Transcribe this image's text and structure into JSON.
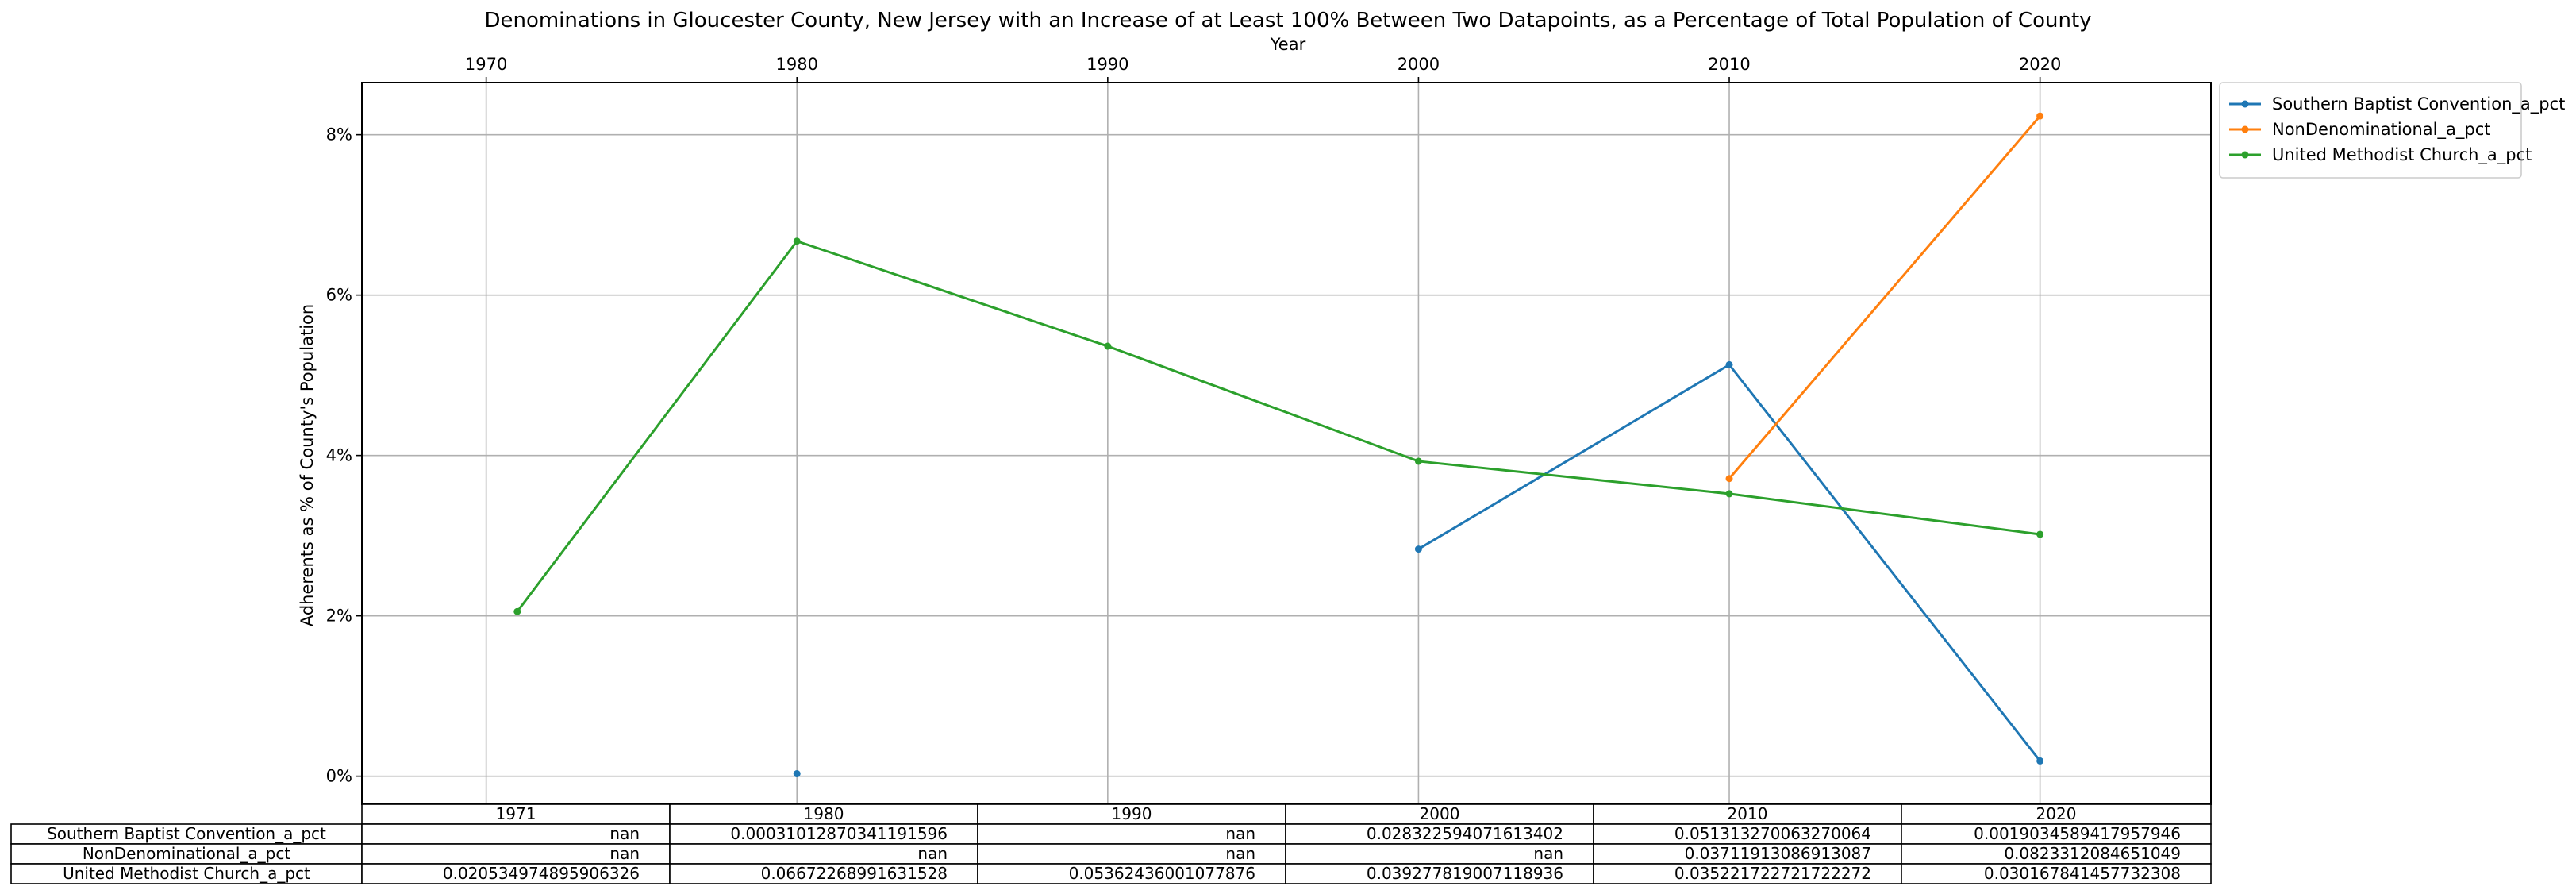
{
  "chart_data": {
    "type": "line",
    "title": "Denominations in Gloucester County, New Jersey with an Increase of at Least 100% Between Two Datapoints, as a Percentage of Total Population of County",
    "xlabel": "Year",
    "ylabel": "Adherents as % of County's Population",
    "x_axis_position": "top",
    "xlim": [
      1966,
      2025.5
    ],
    "ylim": [
      -0.0035,
      0.0865
    ],
    "x_ticks": [
      1970,
      1980,
      1990,
      2000,
      2010,
      2020
    ],
    "x_tick_labels": [
      "1970",
      "1980",
      "1990",
      "2000",
      "2010",
      "2020"
    ],
    "y_ticks": [
      0,
      0.02,
      0.04,
      0.06,
      0.08
    ],
    "y_tick_labels": [
      "0%",
      "2%",
      "4%",
      "6%",
      "8%"
    ],
    "grid": true,
    "legend_position": "outside upper right",
    "x": [
      1971,
      1980,
      1990,
      2000,
      2010,
      2020
    ],
    "series": [
      {
        "name": "Southern Baptist Convention_a_pct",
        "color": "#1f77b4",
        "values": [
          null,
          0.00031012870341191596,
          null,
          0.028322594071613402,
          0.051313270063270064,
          0.0019034589417957946
        ]
      },
      {
        "name": "NonDenominational_a_pct",
        "color": "#ff7f0e",
        "values": [
          null,
          null,
          null,
          null,
          0.03711913086913087,
          0.0823312084651049
        ]
      },
      {
        "name": "United Methodist Church_a_pct",
        "color": "#2ca02c",
        "values": [
          0.020534974895906326,
          0.06672268991631528,
          0.05362436001077876,
          0.039277819007118936,
          0.03522172272172227,
          0.030167841457732308
        ]
      }
    ],
    "table": {
      "column_headers": [
        "1971",
        "1980",
        "1990",
        "2000",
        "2010",
        "2020"
      ],
      "rows": [
        {
          "label": "Southern Baptist Convention_a_pct",
          "cells": [
            "nan",
            "0.00031012870341191596",
            "nan",
            "0.028322594071613402",
            "0.051313270063270064",
            "0.0019034589417957946"
          ]
        },
        {
          "label": "NonDenominational_a_pct",
          "cells": [
            "nan",
            "nan",
            "nan",
            "nan",
            "0.03711913086913087",
            "0.0823312084651049"
          ]
        },
        {
          "label": "United Methodist Church_a_pct",
          "cells": [
            "0.020534974895906326",
            "0.06672268991631528",
            "0.05362436001077876",
            "0.039277819007118936",
            "0.035221722721722272",
            "0.030167841457732308"
          ]
        }
      ]
    }
  }
}
